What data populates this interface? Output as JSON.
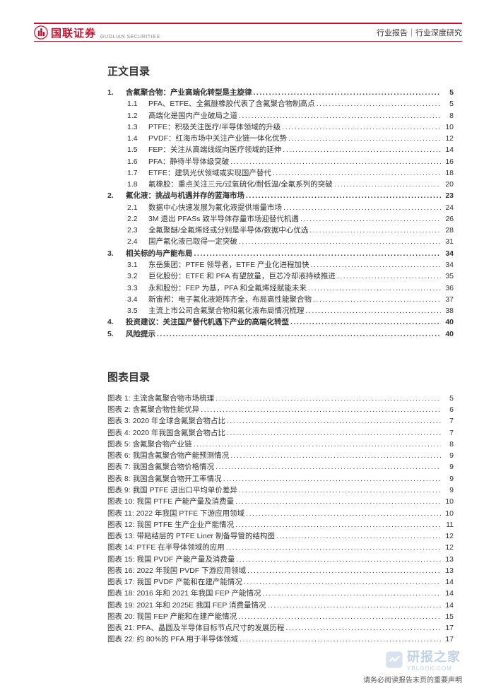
{
  "header": {
    "logo_text": "国联证券",
    "logo_sub": "GUOLIAN SECURITIES",
    "report_type": "行业报告｜行业深度研究"
  },
  "colors": {
    "brand_red": "#c8102e",
    "text": "#333333",
    "watermark": "#4a7fb8"
  },
  "toc_main": {
    "title": "正文目录",
    "items": [
      {
        "level": 1,
        "num": "1.",
        "text": "含氟聚合物：产业高端化转型是主旋律",
        "page": "5"
      },
      {
        "level": 2,
        "num": "1.1",
        "text": "PFA、ETFE、全氟醚橡胶代表了含氟聚合物制高点",
        "page": "5"
      },
      {
        "level": 2,
        "num": "1.2",
        "text": "高端化是国内产业破局之道",
        "page": "8"
      },
      {
        "level": 2,
        "num": "1.3",
        "text": "PTFE：积极关注医疗/半导体领域的升级",
        "page": "10"
      },
      {
        "level": 2,
        "num": "1.4",
        "text": "PVDF：红海市场中关注产业链一体化优势",
        "page": "12"
      },
      {
        "level": 2,
        "num": "1.5",
        "text": "FEP：关注从高端线缆向医疗领域的延伸",
        "page": "14"
      },
      {
        "level": 2,
        "num": "1.6",
        "text": "PFA：静待半导体级突破",
        "page": "16"
      },
      {
        "level": 2,
        "num": "1.7",
        "text": "ETFE：建筑光伏领域或实现国产替代",
        "page": "18"
      },
      {
        "level": 2,
        "num": "1.8",
        "text": "氟橡胶：重点关注三元/过氧硫化/耐低温/全氟系列的突破",
        "page": "20"
      },
      {
        "level": 1,
        "num": "2.",
        "text": "氟化液：挑战与机遇并存的蓝海市场",
        "page": "23"
      },
      {
        "level": 2,
        "num": "2.1",
        "text": "数据中心快速发展为氟化液提供增量市场",
        "page": "24"
      },
      {
        "level": 2,
        "num": "2.2",
        "text": "3M 退出 PFASs 致半导体存量市场迎替代机遇",
        "page": "26"
      },
      {
        "level": 2,
        "num": "2.3",
        "text": "全氟聚醚/全氟烯烃或分别是半导体/数据中心优选",
        "page": "28"
      },
      {
        "level": 2,
        "num": "2.4",
        "text": "国产氟化液已取得一定突破",
        "page": "31"
      },
      {
        "level": 1,
        "num": "3.",
        "text": "相关标的与产能布局",
        "page": "34"
      },
      {
        "level": 2,
        "num": "3.1",
        "text": "东岳集团：PTFE 领导者，ETFE 产业化进程加快",
        "page": "34"
      },
      {
        "level": 2,
        "num": "3.2",
        "text": "巨化股份：ETFE 和 PFA 有望放量，巨芯冷却液持续推进",
        "page": "35"
      },
      {
        "level": 2,
        "num": "3.3",
        "text": "永和股份：FEP 为基，PFA 和全氟烯烃赋能未来",
        "page": "36"
      },
      {
        "level": 2,
        "num": "3.4",
        "text": "新宙邦：电子氟化液矩阵齐全，布局高性能聚合物",
        "page": "37"
      },
      {
        "level": 2,
        "num": "3.5",
        "text": "主流上市公司含氟聚合物和氟化液布局情况梳理",
        "page": "38"
      },
      {
        "level": 1,
        "num": "4.",
        "text": "投资建议：关注国产替代机遇下产业的高端化转型",
        "page": "40"
      },
      {
        "level": 1,
        "num": "5.",
        "text": "风险提示",
        "page": "40"
      }
    ]
  },
  "toc_figures": {
    "title": "图表目录",
    "label_prefix": "图表 ",
    "items": [
      {
        "idx": "1:",
        "text": "主流含氟聚合物市场梳理",
        "page": "5"
      },
      {
        "idx": "2:",
        "text": "含氟聚合物性能优异",
        "page": "6"
      },
      {
        "idx": "3:",
        "text": "2020 年全球含氟聚合物占比",
        "page": "7"
      },
      {
        "idx": "4:",
        "text": "2020 年我国含氟聚合物占比",
        "page": "7"
      },
      {
        "idx": "5:",
        "text": "含氟聚合物产业链",
        "page": "8"
      },
      {
        "idx": "6:",
        "text": "我国含氟聚合物产能预测情况",
        "page": "9"
      },
      {
        "idx": "7:",
        "text": "我国含氟聚合物价格情况",
        "page": "9"
      },
      {
        "idx": "8:",
        "text": "我国含氟聚合物开工率情况",
        "page": "9"
      },
      {
        "idx": "9:",
        "text": "我国 PTFE 进出口平均单价差异",
        "page": "9"
      },
      {
        "idx": "10:",
        "text": "我国 PTFE 产能产量及消费量",
        "page": "10"
      },
      {
        "idx": "11:",
        "text": "2022 年我国 PTFE 下游应用领域",
        "page": "10"
      },
      {
        "idx": "12:",
        "text": "我国 PTFE 生产企业产能情况",
        "page": "11"
      },
      {
        "idx": "13:",
        "text": "带粘结层的 PTFE Liner 制备导管的结构图",
        "page": "12"
      },
      {
        "idx": "14:",
        "text": "PTFE 在半导体领域的应用",
        "page": "12"
      },
      {
        "idx": "15:",
        "text": "我国 PVDF 产能产量及消费量",
        "page": "13"
      },
      {
        "idx": "16:",
        "text": "2022 年我国 PVDF 下游应用领域",
        "page": "13"
      },
      {
        "idx": "17:",
        "text": "我国 PVDF 产能和在建产能情况",
        "page": "14"
      },
      {
        "idx": "18:",
        "text": "2016 年和 2021 年我国 FEP 产能情况",
        "page": "14"
      },
      {
        "idx": "19:",
        "text": "2021 年和 2025E 我国 FEP 消费量情况",
        "page": "14"
      },
      {
        "idx": "20:",
        "text": "我国 FEP 产能和在建产能情况",
        "page": "15"
      },
      {
        "idx": "21:",
        "text": "PFA、晶圆及半导体目标节点尺寸的发展历程",
        "page": "17"
      },
      {
        "idx": "22:",
        "text": "约 80%的 PFA 用于半导体领域",
        "page": "17"
      }
    ]
  },
  "footer": {
    "text": "请务必阅读报告末页的重要声明"
  },
  "watermark": {
    "text": "研报之家",
    "url": "YBLOOK.COM"
  }
}
